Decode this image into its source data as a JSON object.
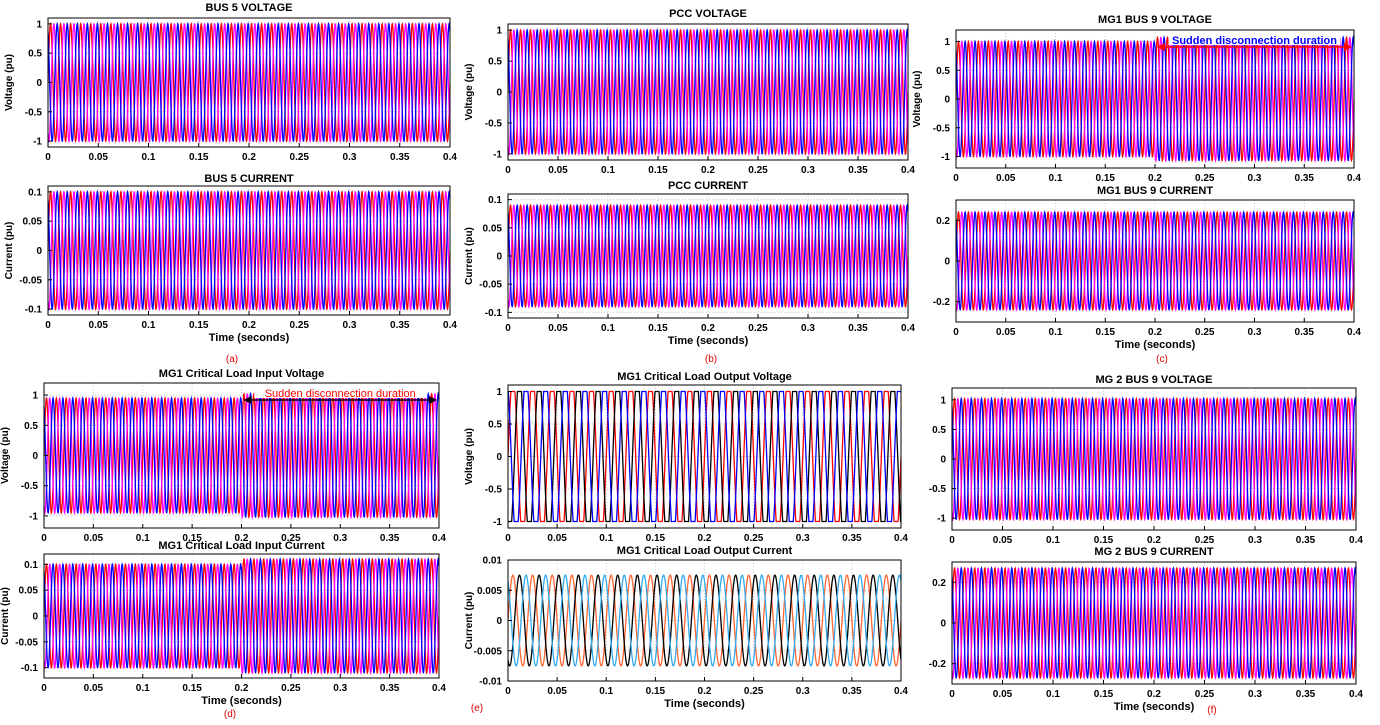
{
  "chart_data": [
    {
      "type": "line",
      "title": "BUS 5 VOLTAGE",
      "xlabel": "",
      "ylabel": "Voltage (pu)",
      "xlim": [
        0,
        0.4
      ],
      "ylim": [
        -1.1,
        1.1
      ],
      "yticks": [
        "1",
        "0.5",
        "0",
        "-0.5",
        "-1"
      ],
      "xticks": [
        "0",
        "0.05",
        "0.1",
        "0.15",
        "0.2",
        "0.25",
        "0.3",
        "0.35",
        "0.4"
      ],
      "grid": true,
      "waveform": {
        "shape": "sine",
        "frequency_hz": 100,
        "amplitude": 1.0,
        "phases_deg": [
          0,
          120,
          240
        ]
      },
      "series_colors": [
        "#ff0000",
        "#ff00ff",
        "#0000ff"
      ]
    },
    {
      "type": "line",
      "title": "BUS 5 CURRENT",
      "xlabel": "Time (seconds)",
      "ylabel": "Current (pu)",
      "xlim": [
        0,
        0.4
      ],
      "ylim": [
        -0.11,
        0.11
      ],
      "yticks": [
        "0.1",
        "0.05",
        "0",
        "-0.05",
        "-0.1"
      ],
      "xticks": [
        "0",
        "0.05",
        "0.1",
        "0.15",
        "0.2",
        "0.25",
        "0.3",
        "0.35",
        "0.4"
      ],
      "grid": true,
      "waveform": {
        "shape": "sine",
        "frequency_hz": 100,
        "amplitude": 0.1,
        "phases_deg": [
          0,
          120,
          240
        ]
      },
      "series_colors": [
        "#ff0000",
        "#ff00ff",
        "#0000ff"
      ]
    },
    {
      "type": "line",
      "title": "PCC VOLTAGE",
      "xlabel": "",
      "ylabel": "Voltage (pu)",
      "xlim": [
        0,
        0.4
      ],
      "ylim": [
        -1.1,
        1.1
      ],
      "yticks": [
        "1",
        "0.5",
        "0",
        "-0.5",
        "-1"
      ],
      "xticks": [
        "0",
        "0.05",
        "0.1",
        "0.15",
        "0.2",
        "0.25",
        "0.3",
        "0.35",
        "0.4"
      ],
      "grid": true,
      "waveform": {
        "shape": "sine",
        "frequency_hz": 100,
        "amplitude": 1.0,
        "phases_deg": [
          0,
          120,
          240
        ]
      },
      "series_colors": [
        "#ff0000",
        "#ff00ff",
        "#0000ff"
      ]
    },
    {
      "type": "line",
      "title": "PCC CURRENT",
      "xlabel": "Time (seconds)",
      "ylabel": "Current (pu)",
      "xlim": [
        0,
        0.4
      ],
      "ylim": [
        -0.11,
        0.11
      ],
      "yticks": [
        "0.1",
        "0.05",
        "0",
        "-0.05",
        "-0.1"
      ],
      "xticks": [
        "0",
        "0.05",
        "0.1",
        "0.15",
        "0.2",
        "0.25",
        "0.3",
        "0.35",
        "0.4"
      ],
      "grid": true,
      "waveform": {
        "shape": "sine",
        "frequency_hz": 100,
        "amplitude": 0.09,
        "phases_deg": [
          0,
          120,
          240
        ]
      },
      "series_colors": [
        "#ff0000",
        "#ff00ff",
        "#0000ff"
      ]
    },
    {
      "type": "line",
      "title": "MG1 BUS 9 VOLTAGE",
      "xlabel": "",
      "ylabel": "Voltage (pu)",
      "xlim": [
        0,
        0.4
      ],
      "ylim": [
        -1.2,
        1.2
      ],
      "yticks": [
        "1",
        "0.5",
        "0",
        "-0.5",
        "-1"
      ],
      "xticks": [
        "0",
        "0.05",
        "0.1",
        "0.15",
        "0.2",
        "0.25",
        "0.3",
        "0.35",
        "0.4"
      ],
      "grid": true,
      "waveform": {
        "shape": "sine",
        "frequency_hz": 100,
        "amplitude": 1.0,
        "amplitude_after_event": 1.07,
        "event_time": 0.2,
        "phases_deg": [
          0,
          120,
          240
        ]
      },
      "series_colors": [
        "#ff0000",
        "#ff00ff",
        "#0000ff"
      ],
      "annotation": {
        "text": "Sudden disconnection duration",
        "x_start": 0.2,
        "x_end": 0.4,
        "text_color": "#0000ff",
        "arrow_color": "#ff0000"
      }
    },
    {
      "type": "line",
      "title": "MG1 BUS 9 CURRENT",
      "xlabel": "Time (seconds)",
      "ylabel": "",
      "xlim": [
        0,
        0.4
      ],
      "ylim": [
        -0.3,
        0.3
      ],
      "yticks": [
        "0.2",
        "0",
        "-0.2"
      ],
      "xticks": [
        "0",
        "0.05",
        "0.1",
        "0.15",
        "0.2",
        "0.25",
        "0.3",
        "0.35",
        "0.4"
      ],
      "grid": true,
      "waveform": {
        "shape": "sine",
        "frequency_hz": 100,
        "amplitude": 0.24,
        "phases_deg": [
          0,
          120,
          240
        ]
      },
      "series_colors": [
        "#ff0000",
        "#ff00ff",
        "#0000ff"
      ]
    },
    {
      "type": "line",
      "title": "MG1 Critical Load Input Voltage",
      "xlabel": "",
      "ylabel": "Voltage (pu)",
      "xlim": [
        0,
        0.4
      ],
      "ylim": [
        -1.2,
        1.2
      ],
      "yticks": [
        "1",
        "0.5",
        "0",
        "-0.5",
        "-1"
      ],
      "xticks": [
        "0",
        "0.05",
        "0.1",
        "0.15",
        "0.2",
        "0.25",
        "0.3",
        "0.35",
        "0.4"
      ],
      "grid": true,
      "waveform": {
        "shape": "sine",
        "frequency_hz": 100,
        "amplitude": 0.95,
        "amplitude_after_event": 1.02,
        "event_time": 0.2,
        "phases_deg": [
          0,
          120,
          240
        ]
      },
      "series_colors": [
        "#ff0000",
        "#ff00ff",
        "#0000ff"
      ],
      "annotation": {
        "text": "Sudden disconnection duration",
        "x_start": 0.2,
        "x_end": 0.4,
        "text_color": "#ff0000",
        "arrow_color": "#000000"
      }
    },
    {
      "type": "line",
      "title": "MG1 Critical Load Input Current",
      "xlabel": "Time (seconds)",
      "ylabel": "Current (pu)",
      "xlim": [
        0,
        0.4
      ],
      "ylim": [
        -0.12,
        0.12
      ],
      "yticks": [
        "0.1",
        "0.05",
        "0",
        "-0.05",
        "-0.1"
      ],
      "xticks": [
        "0",
        "0.05",
        "0.1",
        "0.15",
        "0.2",
        "0.25",
        "0.3",
        "0.35",
        "0.4"
      ],
      "grid": true,
      "waveform": {
        "shape": "sine",
        "frequency_hz": 100,
        "amplitude": 0.1,
        "amplitude_after_event": 0.11,
        "event_time": 0.2,
        "phases_deg": [
          0,
          120,
          240
        ]
      },
      "series_colors": [
        "#ff0000",
        "#ff00ff",
        "#0000ff"
      ]
    },
    {
      "type": "line",
      "title": "MG1 Critical Load Output Voltage",
      "xlabel": "",
      "ylabel": "Voltage (pu)",
      "xlim": [
        0,
        0.4
      ],
      "ylim": [
        -1.1,
        1.1
      ],
      "yticks": [
        "1",
        "0.5",
        "0",
        "-0.5",
        "-1"
      ],
      "xticks": [
        "0",
        "0.05",
        "0.1",
        "0.15",
        "0.2",
        "0.25",
        "0.3",
        "0.35",
        "0.4"
      ],
      "grid": true,
      "waveform": {
        "shape": "clipped-sine",
        "frequency_hz": 50,
        "amplitude": 1.0,
        "phases_deg": [
          0,
          120,
          240
        ]
      },
      "series_colors": [
        "#ff0000",
        "#000000",
        "#0000ff"
      ]
    },
    {
      "type": "line",
      "title": "MG1 Critical Load Output Current",
      "xlabel": "Time (seconds)",
      "ylabel": "Current (pu)",
      "xlim": [
        0,
        0.4
      ],
      "ylim": [
        -0.01,
        0.01
      ],
      "yticks": [
        "0.01",
        "0.005",
        "0",
        "-0.005",
        "-0.01"
      ],
      "xticks": [
        "0",
        "0.05",
        "0.1",
        "0.15",
        "0.2",
        "0.25",
        "0.3",
        "0.35",
        "0.4"
      ],
      "grid": true,
      "waveform": {
        "shape": "sine",
        "frequency_hz": 50,
        "amplitude": 0.0075,
        "phases_deg": [
          0,
          120,
          240
        ]
      },
      "series_colors": [
        "#ff6633",
        "#000000",
        "#33aaee"
      ]
    },
    {
      "type": "line",
      "title": "MG 2 BUS 9 VOLTAGE",
      "xlabel": "",
      "ylabel": "",
      "xlim": [
        0,
        0.4
      ],
      "ylim": [
        -1.2,
        1.2
      ],
      "yticks": [
        "1",
        "0.5",
        "0",
        "-0.5",
        "-1"
      ],
      "xticks": [
        "0",
        "0.05",
        "0.1",
        "0.15",
        "0.2",
        "0.25",
        "0.3",
        "0.35",
        "0.4"
      ],
      "grid": true,
      "waveform": {
        "shape": "sine",
        "frequency_hz": 100,
        "amplitude": 1.02,
        "phases_deg": [
          0,
          120,
          240
        ]
      },
      "series_colors": [
        "#ff0000",
        "#ff00ff",
        "#0000ff"
      ]
    },
    {
      "type": "line",
      "title": "MG 2 BUS 9 CURRENT",
      "xlabel": "Time (seconds)",
      "ylabel": "",
      "xlim": [
        0,
        0.4
      ],
      "ylim": [
        -0.3,
        0.3
      ],
      "yticks": [
        "0.2",
        "0",
        "-0.2"
      ],
      "xticks": [
        "0",
        "0.05",
        "0.1",
        "0.15",
        "0.2",
        "0.25",
        "0.3",
        "0.35",
        "0.4"
      ],
      "grid": true,
      "waveform": {
        "shape": "sine",
        "frequency_hz": 100,
        "amplitude": 0.27,
        "phases_deg": [
          0,
          120,
          240
        ]
      },
      "series_colors": [
        "#ff0000",
        "#ff00ff",
        "#0000ff"
      ]
    }
  ],
  "panel_labels": [
    "(a)",
    "(b)",
    "(c)",
    "(d)",
    "(e)",
    "(f)"
  ]
}
